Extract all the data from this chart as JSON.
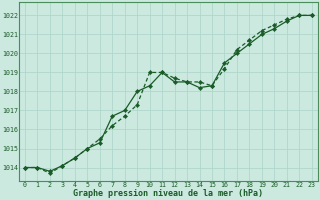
{
  "title": "Graphe pression niveau de la mer (hPa)",
  "bg_color": "#cce9e0",
  "grid_color": "#aad4c8",
  "line_color": "#1a5c28",
  "marker_color": "#1a5c28",
  "xlim": [
    -0.5,
    23.5
  ],
  "ylim": [
    1013.3,
    1022.7
  ],
  "xticks": [
    0,
    1,
    2,
    3,
    4,
    5,
    6,
    7,
    8,
    9,
    10,
    11,
    12,
    13,
    14,
    15,
    16,
    17,
    18,
    19,
    20,
    21,
    22,
    23
  ],
  "yticks": [
    1014,
    1015,
    1016,
    1017,
    1018,
    1019,
    1020,
    1021,
    1022
  ],
  "series1_x": [
    0,
    1,
    2,
    3,
    4,
    5,
    6,
    7,
    8,
    9,
    10,
    11,
    12,
    13,
    14,
    15,
    16,
    17,
    18,
    19,
    20,
    21,
    22,
    23
  ],
  "series1_y": [
    1014.0,
    1014.0,
    1013.8,
    1014.1,
    1014.5,
    1015.0,
    1015.3,
    1016.7,
    1017.0,
    1018.0,
    1018.3,
    1019.0,
    1018.5,
    1018.5,
    1018.2,
    1018.3,
    1019.5,
    1020.0,
    1020.5,
    1021.0,
    1021.3,
    1021.7,
    1022.0,
    1022.0
  ],
  "series2_x": [
    0,
    1,
    2,
    3,
    4,
    5,
    6,
    7,
    8,
    9,
    10,
    11,
    12,
    13,
    14,
    15,
    16,
    17,
    18,
    19,
    20,
    21,
    22,
    23
  ],
  "series2_y": [
    1014.0,
    1014.0,
    1013.7,
    1014.1,
    1014.5,
    1015.0,
    1015.5,
    1016.2,
    1016.7,
    1017.3,
    1019.0,
    1019.0,
    1018.7,
    1018.5,
    1018.5,
    1018.3,
    1019.2,
    1020.2,
    1020.7,
    1021.2,
    1021.5,
    1021.8,
    1022.0,
    1022.0
  ],
  "title_color": "#1a5c28",
  "title_fontsize": 6.0,
  "tick_fontsize": 4.8,
  "border_color": "#4a8c5c"
}
